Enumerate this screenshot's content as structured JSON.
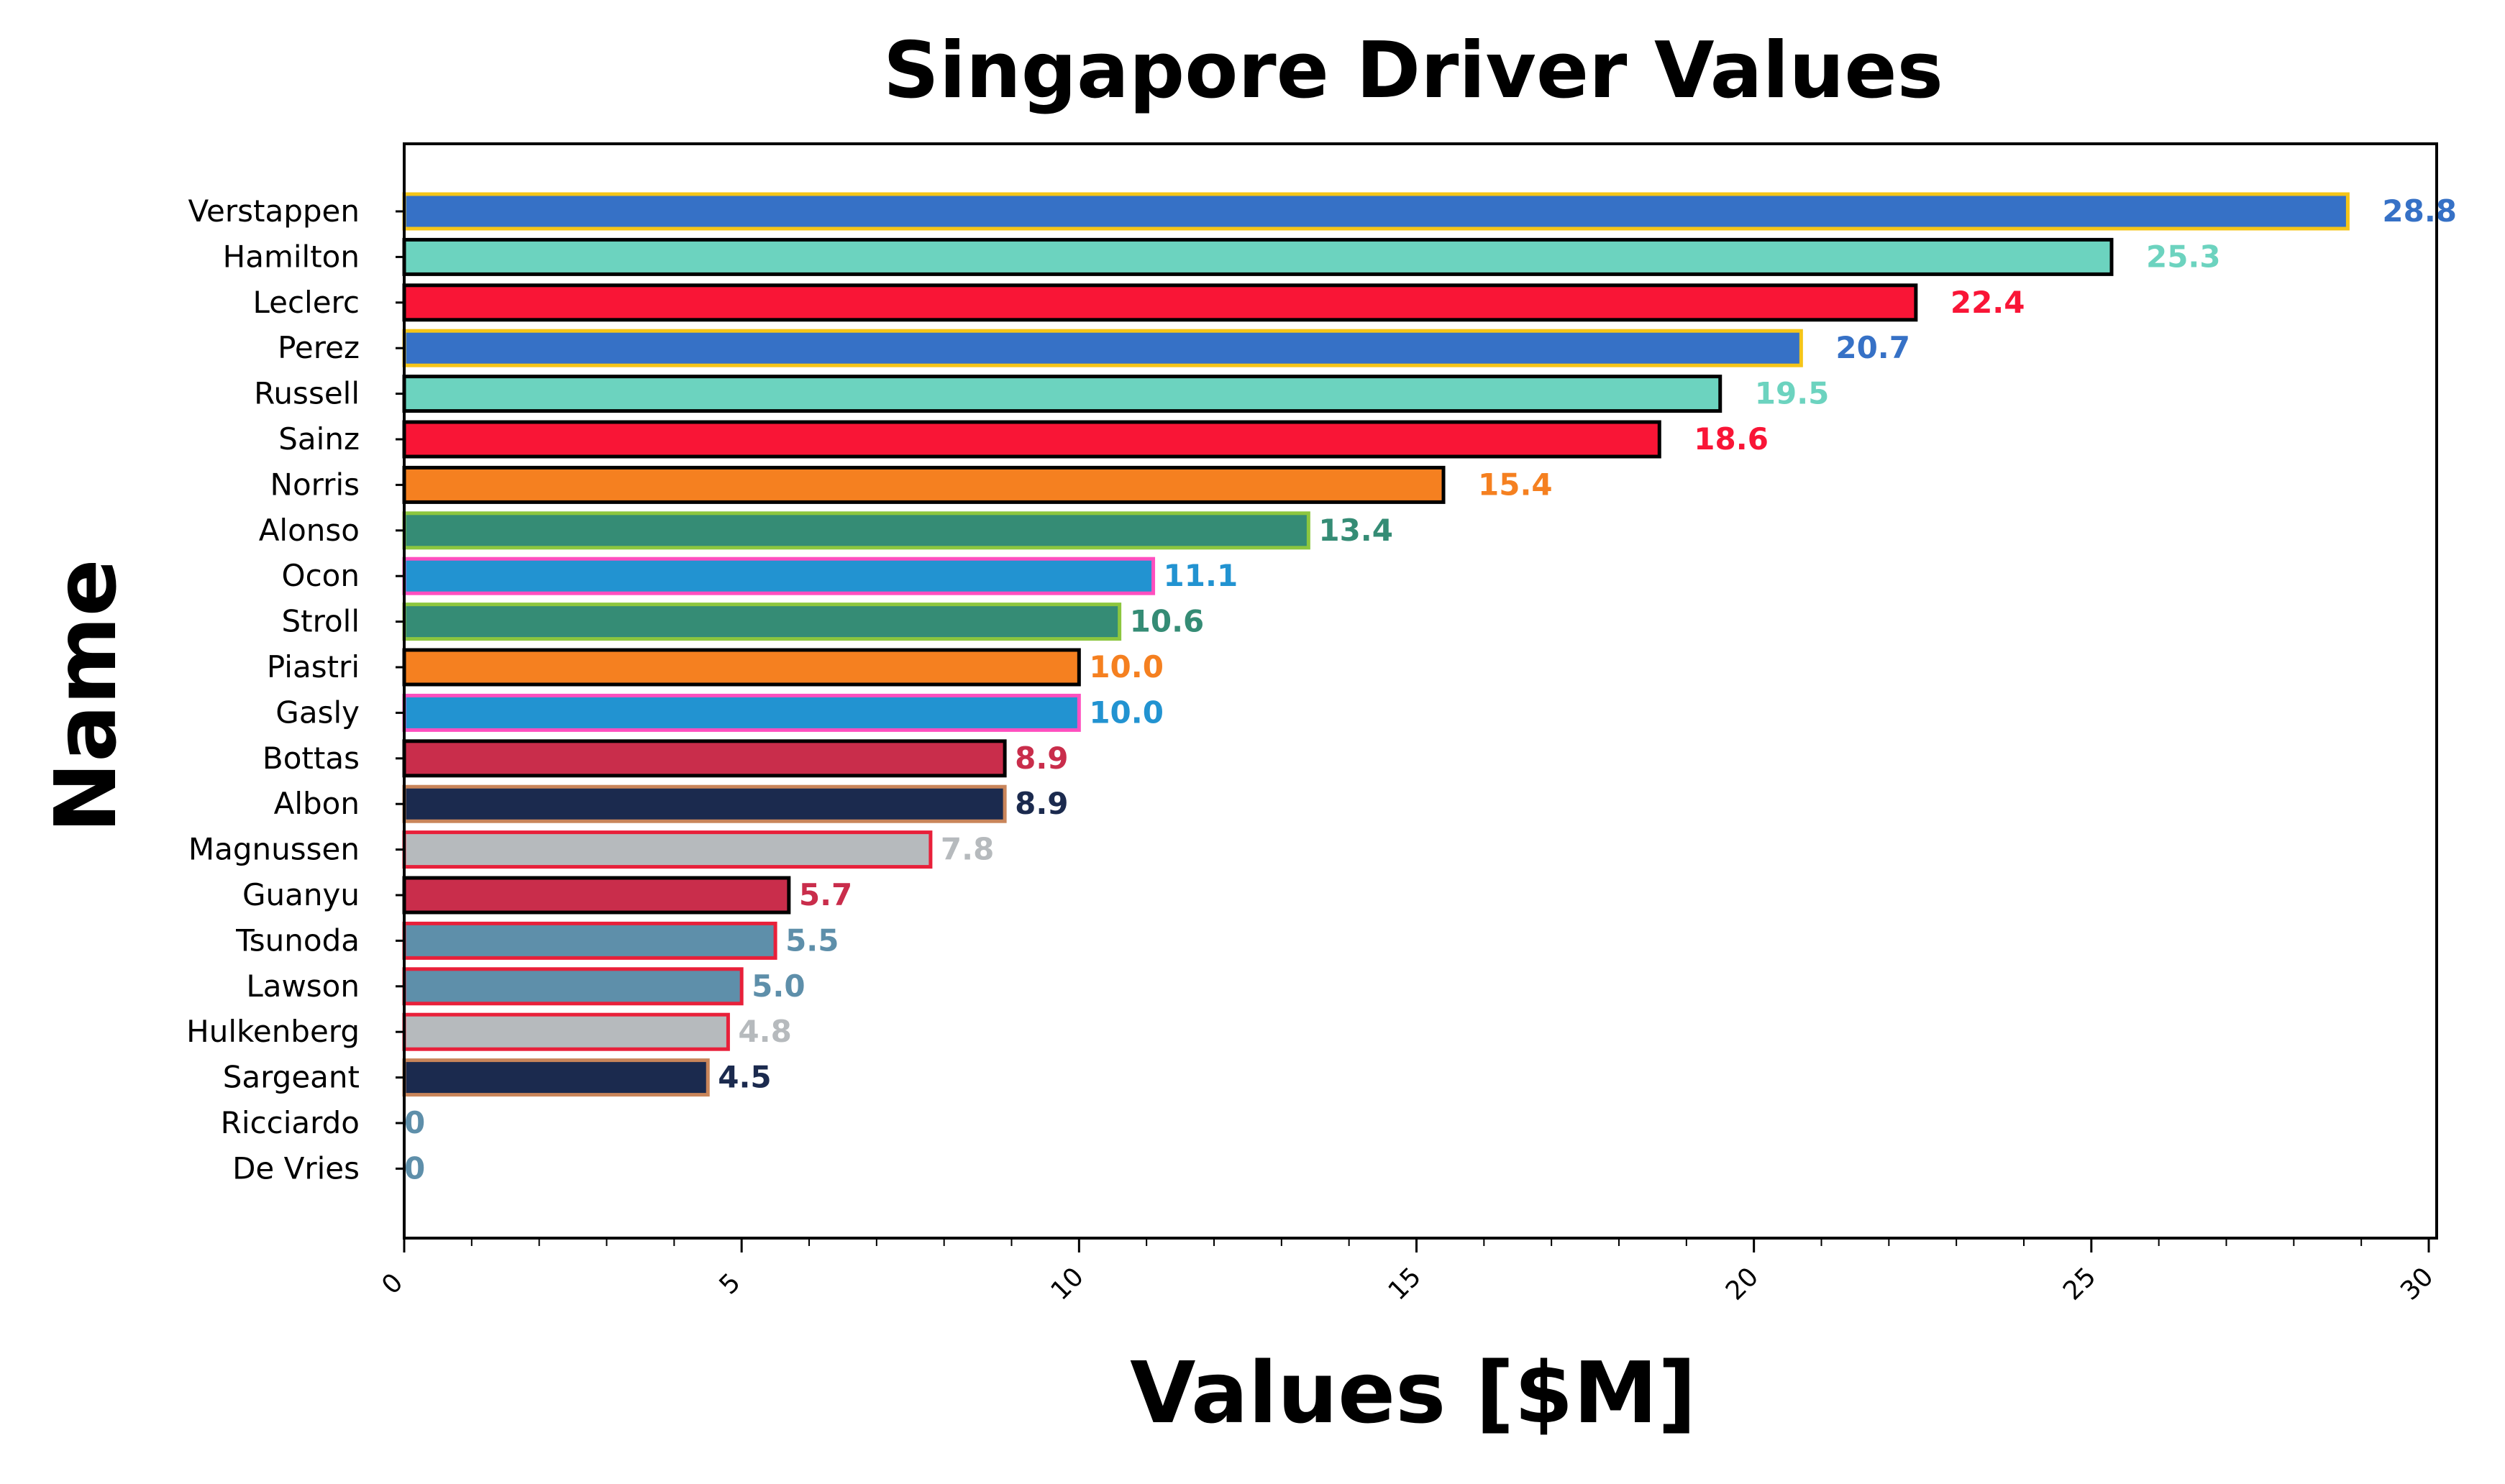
{
  "chart_data": {
    "type": "bar",
    "orientation": "horizontal",
    "title": "Singapore Driver Values",
    "xlabel": "Values [$M]",
    "ylabel": "Name",
    "xlim": [
      0,
      30
    ],
    "xticks": [
      "0",
      "5",
      "10",
      "15",
      "20",
      "25",
      "30"
    ],
    "grid": false,
    "categories": [
      "Verstappen",
      "Hamilton",
      "Leclerc",
      "Perez",
      "Russell",
      "Sainz",
      "Norris",
      "Alonso",
      "Ocon",
      "Stroll",
      "Piastri",
      "Gasly",
      "Bottas",
      "Albon",
      "Magnussen",
      "Guanyu",
      "Tsunoda",
      "Lawson",
      "Hulkenberg",
      "Sargeant",
      "Ricciardo",
      "De Vries"
    ],
    "values": [
      28.8,
      25.3,
      22.4,
      20.7,
      19.5,
      18.6,
      15.4,
      13.4,
      11.1,
      10.6,
      10.0,
      10.0,
      8.9,
      8.9,
      7.8,
      5.7,
      5.5,
      5.0,
      4.8,
      4.5,
      0,
      0
    ],
    "data_labels": [
      "28.8",
      "25.3",
      "22.4",
      "20.7",
      "19.5",
      "18.6",
      "15.4",
      "13.4",
      "11.1",
      "10.6",
      "10.0",
      "10.0",
      "8.9",
      "8.9",
      "7.8",
      "5.7",
      "5.5",
      "5.0",
      "4.8",
      "4.5",
      "0",
      "0"
    ],
    "bar_colors": [
      "#3671C6",
      "#6CD3BF",
      "#F91536",
      "#3671C6",
      "#6CD3BF",
      "#F91536",
      "#F58020",
      "#358C75",
      "#2293D1",
      "#358C75",
      "#F58020",
      "#2293D1",
      "#C92D4B",
      "#1B2A4E",
      "#B6BABD",
      "#C92D4B",
      "#5E8FAA",
      "#5E8FAA",
      "#B6BABD",
      "#1B2A4E",
      "#5E8FAA",
      "#5E8FAA"
    ],
    "edge_colors": [
      "#F5C518",
      "#000000",
      "#000000",
      "#F5C518",
      "#000000",
      "#000000",
      "#000000",
      "#8CC63F",
      "#FF4FBF",
      "#8CC63F",
      "#000000",
      "#FF4FBF",
      "#000000",
      "#C9855A",
      "#E8203A",
      "#000000",
      "#E8203A",
      "#E8203A",
      "#E8203A",
      "#C9855A",
      "#E8203A",
      "#E8203A"
    ],
    "label_colors": [
      "#3671C6",
      "#6CD3BF",
      "#F91536",
      "#3671C6",
      "#6CD3BF",
      "#F91536",
      "#F58020",
      "#358C75",
      "#2293D1",
      "#358C75",
      "#F58020",
      "#2293D1",
      "#C92D4B",
      "#1B2A4E",
      "#B6BABD",
      "#C92D4B",
      "#5E8FAA",
      "#5E8FAA",
      "#B6BABD",
      "#1B2A4E",
      "#5E8FAA",
      "#5E8FAA"
    ]
  }
}
